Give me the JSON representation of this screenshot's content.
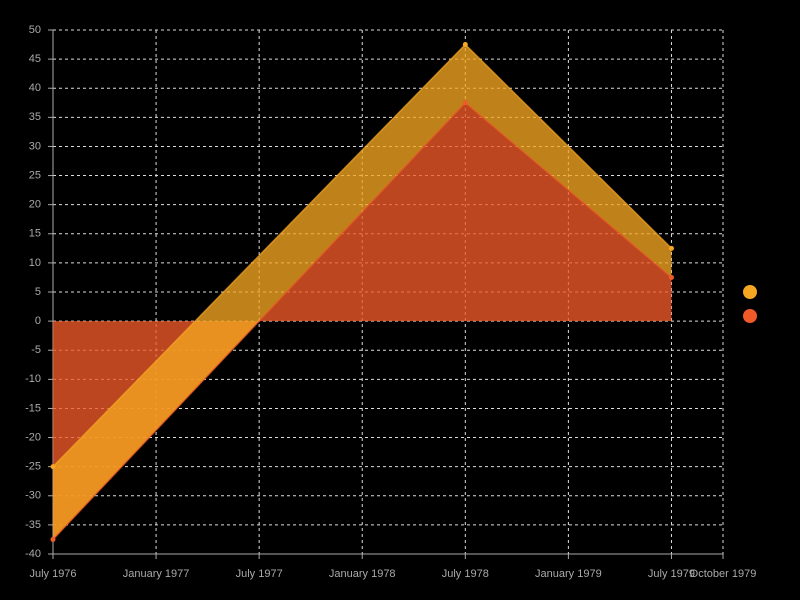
{
  "chart_data": {
    "type": "area",
    "x": [
      "1976-07",
      "1978-07",
      "1979-07"
    ],
    "series": [
      {
        "color": "#f5a623",
        "values": [
          -25,
          47.5,
          12.5
        ]
      },
      {
        "color": "#f05a28",
        "values": [
          -37.5,
          37.5,
          7.5
        ]
      }
    ],
    "xlim": [
      "1976-07",
      "1979-10"
    ],
    "xticks": [
      {
        "value": "1976-07",
        "label": "July 1976"
      },
      {
        "value": "1977-01",
        "label": "January 1977"
      },
      {
        "value": "1977-07",
        "label": "July 1977"
      },
      {
        "value": "1978-01",
        "label": "January 1978"
      },
      {
        "value": "1978-07",
        "label": "July 1978"
      },
      {
        "value": "1979-01",
        "label": "January 1979"
      },
      {
        "value": "1979-07",
        "label": "July 1979"
      },
      {
        "value": "1979-10",
        "label": "October 1979"
      }
    ],
    "ylim": [
      -40,
      50
    ],
    "yticks": [
      -40,
      -35,
      -30,
      -25,
      -20,
      -15,
      -10,
      -5,
      0,
      5,
      10,
      15,
      20,
      25,
      30,
      35,
      40,
      45,
      50
    ],
    "grid": true
  }
}
